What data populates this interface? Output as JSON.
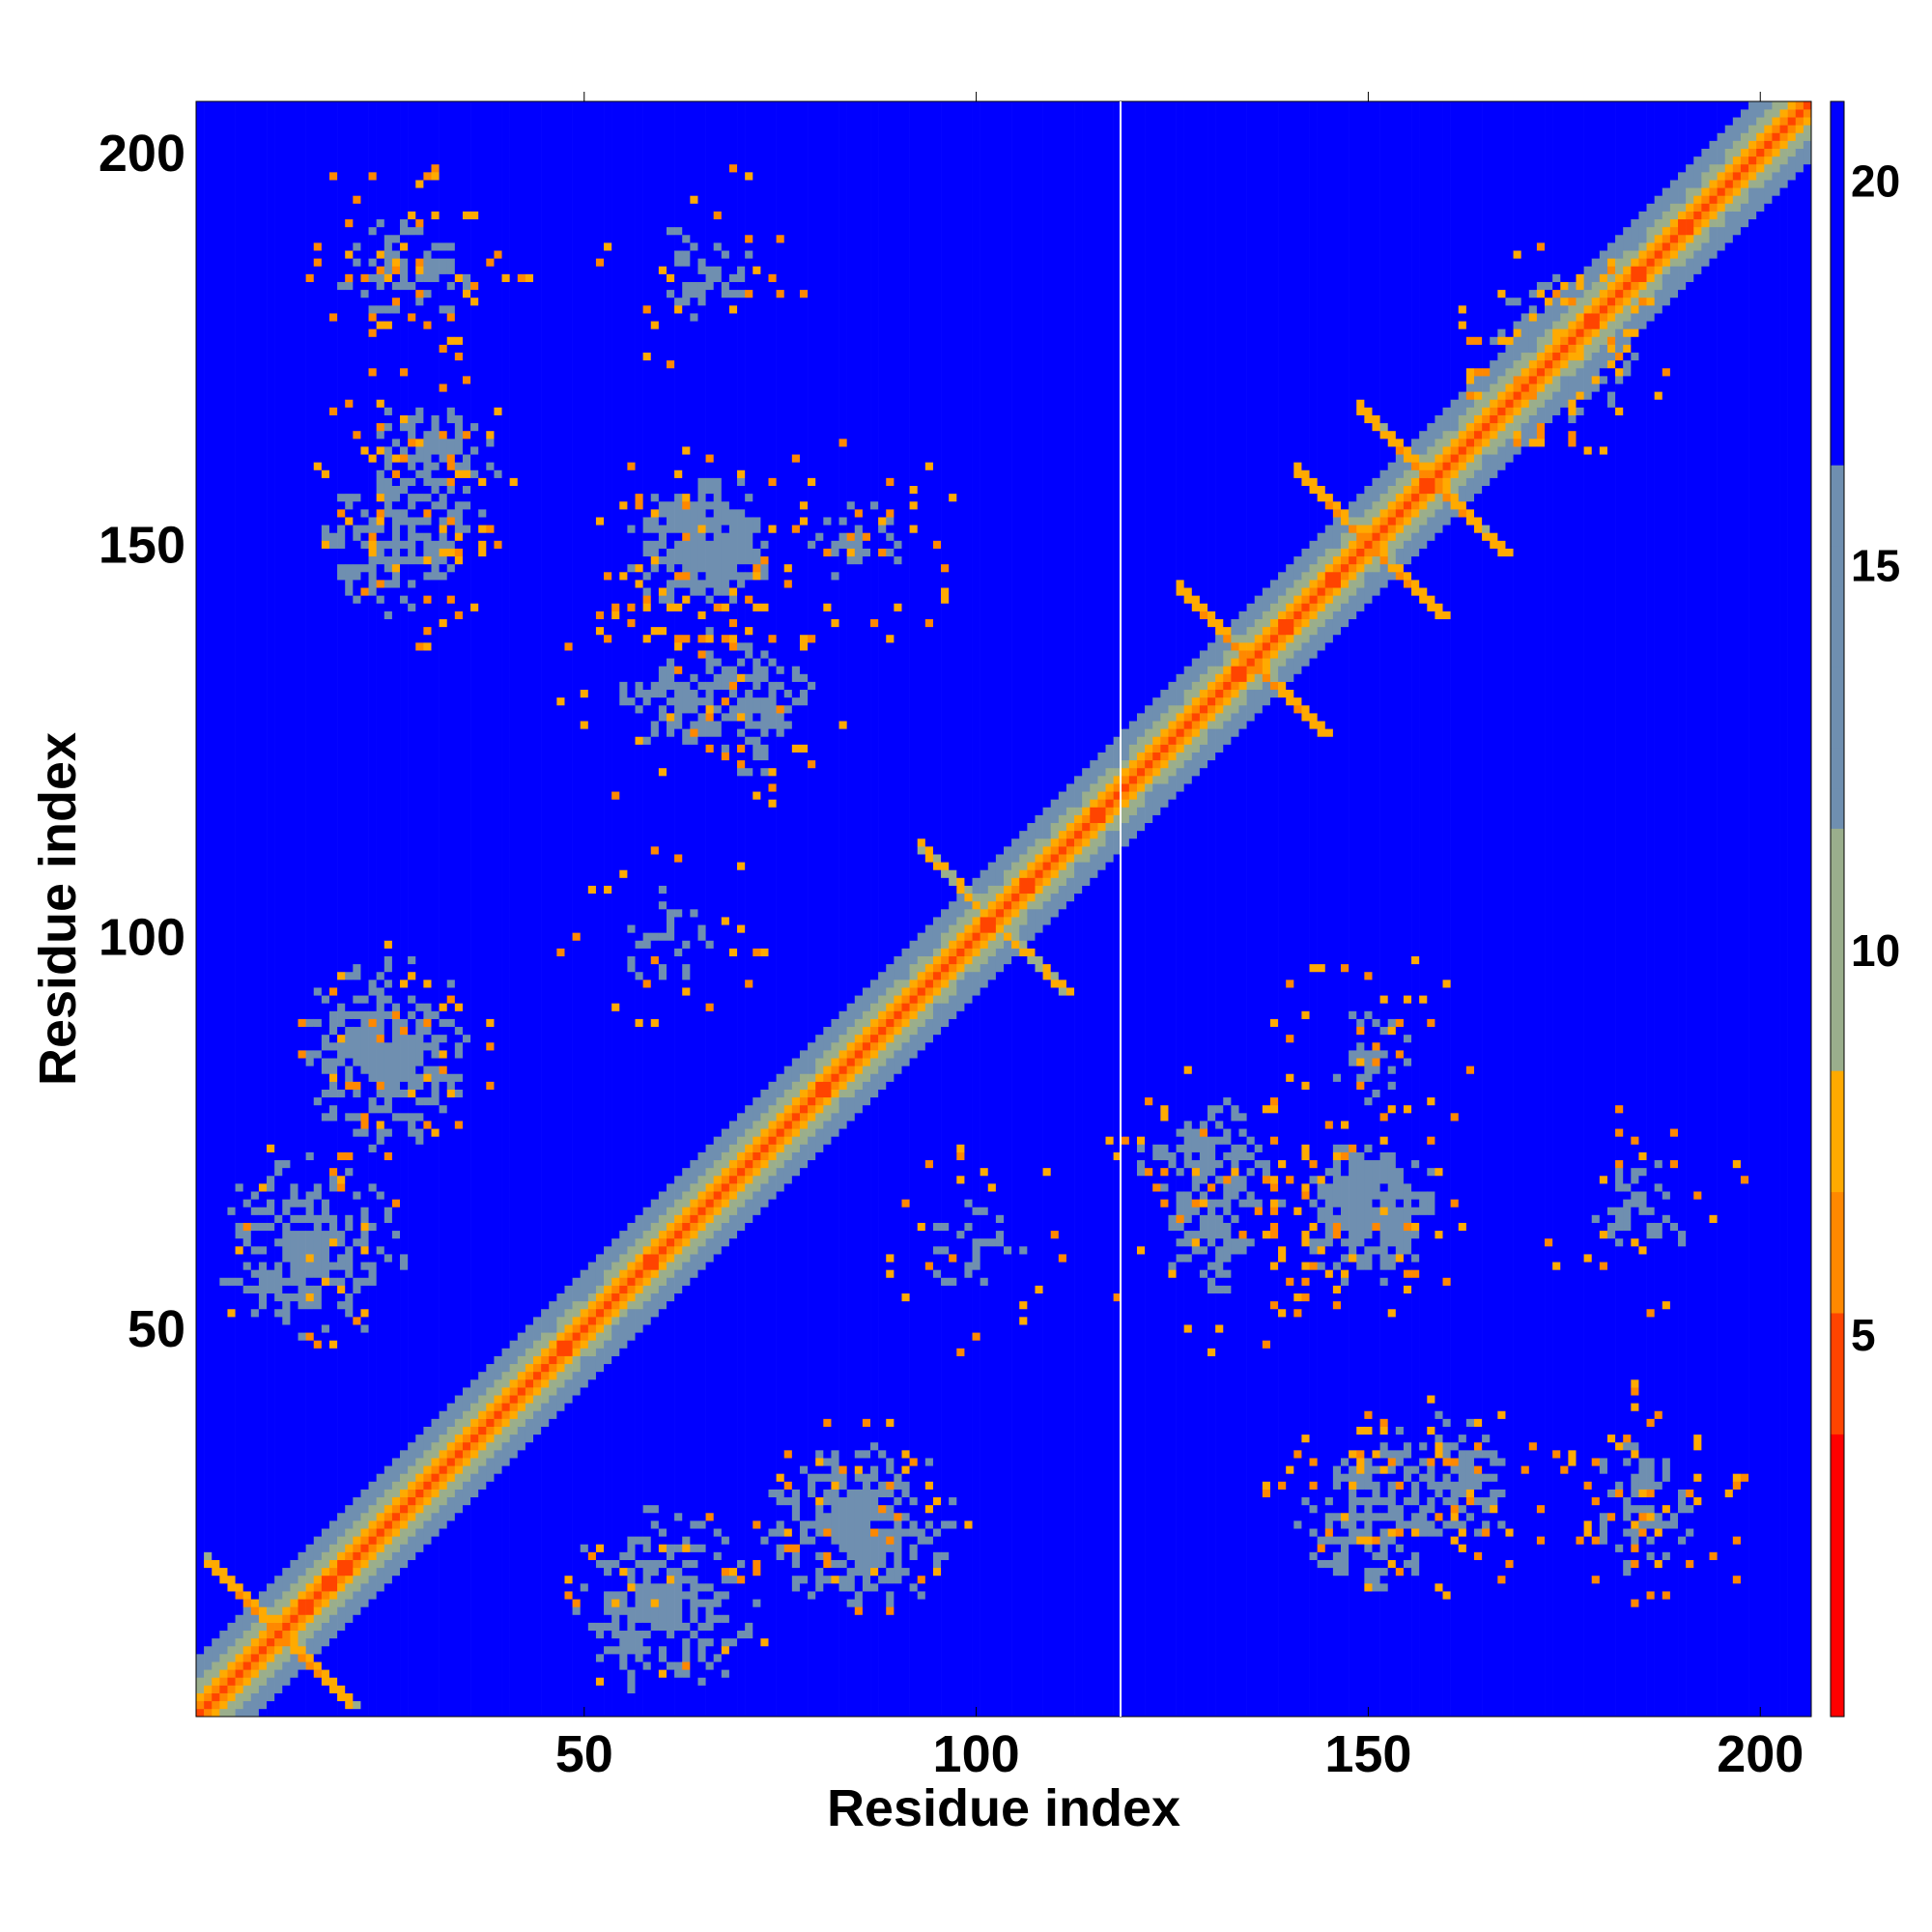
{
  "chart_data": {
    "type": "heatmap",
    "title": "",
    "xlabel": "Residue index",
    "ylabel": "Residue index",
    "xlim": [
      1,
      206
    ],
    "ylim": [
      1,
      206
    ],
    "x_ticks": [
      50,
      100,
      150,
      200
    ],
    "y_ticks": [
      50,
      100,
      150,
      200
    ],
    "x_tick_labels": [
      "50",
      "100",
      "150",
      "200"
    ],
    "y_tick_labels": [
      "50",
      "100",
      "150",
      "200"
    ],
    "colorbar": {
      "range": [
        0,
        21
      ],
      "ticks": [
        5,
        10,
        15,
        20
      ],
      "tick_labels": [
        "5",
        "10",
        "15",
        "20"
      ],
      "placement": "right"
    },
    "colormap_hex": [
      "#ff0000",
      "#ff4400",
      "#ff8800",
      "#ffaa00",
      "#9aae8c",
      "#6f8fb0",
      "#0000ff"
    ],
    "grid": false,
    "symmetric": true,
    "contact_features": {
      "diagonal_band": {
        "from": 1,
        "to": 206,
        "value": 3.8
      },
      "helix_contacts": [
        {
          "center": [
            11,
            11
          ],
          "value": 6
        },
        {
          "center": [
            135,
            135
          ],
          "value": 6
        },
        {
          "center": [
            150,
            150
          ],
          "value": 6
        },
        {
          "center": [
            158,
            158
          ],
          "value": 6
        },
        {
          "center": [
            102,
            102
          ],
          "value": 7
        }
      ],
      "off_diagonal_blobs": [
        {
          "center": [
            60,
            15
          ],
          "value": 12
        },
        {
          "center": [
            85,
            25
          ],
          "value": 12
        },
        {
          "center": [
            30,
            160
          ],
          "value": 13
        },
        {
          "center": [
            30,
            185
          ],
          "value": 14
        },
        {
          "center": [
            70,
            130
          ],
          "value": 13
        },
        {
          "center": [
            65,
            150
          ],
          "value": 13
        },
        {
          "center": [
            60,
            100
          ],
          "value": 14
        },
        {
          "center": [
            150,
            25
          ],
          "value": 13
        },
        {
          "center": [
            185,
            25
          ],
          "value": 14
        },
        {
          "center": [
            150,
            65
          ],
          "value": 13
        },
        {
          "center": [
            185,
            65
          ],
          "value": 14
        },
        {
          "center": [
            150,
            85
          ],
          "value": 14
        },
        {
          "center": [
            130,
            60
          ],
          "value": 14
        },
        {
          "center": [
            175,
            175
          ],
          "value": 13
        }
      ],
      "background_value": 21
    }
  }
}
